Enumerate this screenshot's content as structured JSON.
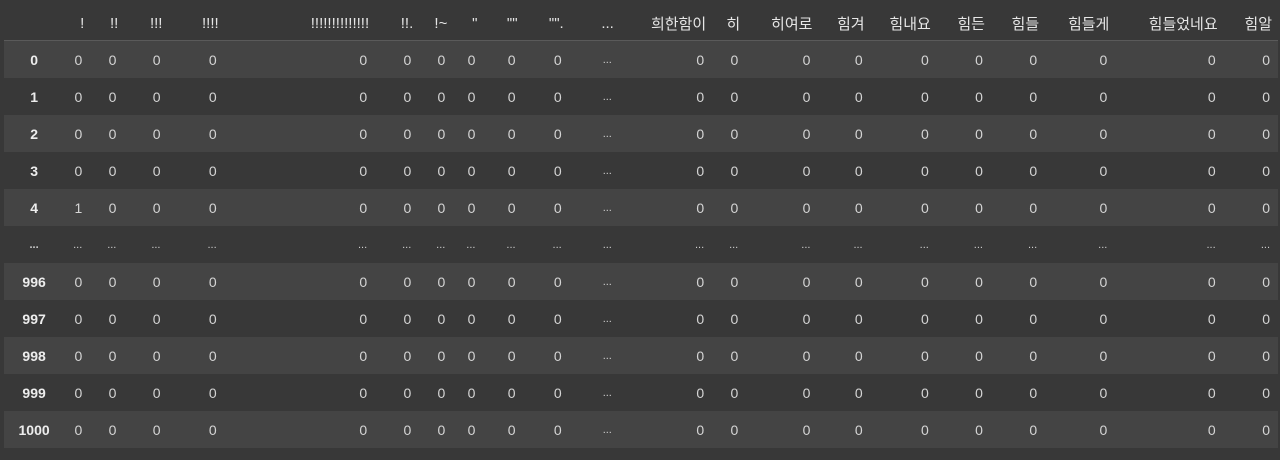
{
  "table": {
    "columns": [
      "!",
      "!!",
      "!!!",
      "!!!!",
      "!!!!!!!!!!!!!!",
      "!!.",
      "!~",
      "\"",
      "\"\"",
      "\"\".",
      "...",
      "희한함이",
      "히",
      "히여로",
      "힘겨",
      "힘내요",
      "힘든",
      "힘들",
      "힘들게",
      "힘들었네요",
      "힘알"
    ],
    "rows": [
      {
        "index": "0",
        "cells": [
          "0",
          "0",
          "0",
          "0",
          "0",
          "0",
          "0",
          "0",
          "0",
          "0",
          "...",
          "0",
          "0",
          "0",
          "0",
          "0",
          "0",
          "0",
          "0",
          "0",
          "0"
        ]
      },
      {
        "index": "1",
        "cells": [
          "0",
          "0",
          "0",
          "0",
          "0",
          "0",
          "0",
          "0",
          "0",
          "0",
          "...",
          "0",
          "0",
          "0",
          "0",
          "0",
          "0",
          "0",
          "0",
          "0",
          "0"
        ]
      },
      {
        "index": "2",
        "cells": [
          "0",
          "0",
          "0",
          "0",
          "0",
          "0",
          "0",
          "0",
          "0",
          "0",
          "...",
          "0",
          "0",
          "0",
          "0",
          "0",
          "0",
          "0",
          "0",
          "0",
          "0"
        ]
      },
      {
        "index": "3",
        "cells": [
          "0",
          "0",
          "0",
          "0",
          "0",
          "0",
          "0",
          "0",
          "0",
          "0",
          "...",
          "0",
          "0",
          "0",
          "0",
          "0",
          "0",
          "0",
          "0",
          "0",
          "0"
        ]
      },
      {
        "index": "4",
        "cells": [
          "1",
          "0",
          "0",
          "0",
          "0",
          "0",
          "0",
          "0",
          "0",
          "0",
          "...",
          "0",
          "0",
          "0",
          "0",
          "0",
          "0",
          "0",
          "0",
          "0",
          "0"
        ]
      },
      {
        "index": "...",
        "cells": [
          "...",
          "...",
          "...",
          "...",
          "...",
          "...",
          "...",
          "...",
          "...",
          "...",
          "...",
          "...",
          "...",
          "...",
          "...",
          "...",
          "...",
          "...",
          "...",
          "...",
          "..."
        ]
      },
      {
        "index": "996",
        "cells": [
          "0",
          "0",
          "0",
          "0",
          "0",
          "0",
          "0",
          "0",
          "0",
          "0",
          "...",
          "0",
          "0",
          "0",
          "0",
          "0",
          "0",
          "0",
          "0",
          "0",
          "0"
        ]
      },
      {
        "index": "997",
        "cells": [
          "0",
          "0",
          "0",
          "0",
          "0",
          "0",
          "0",
          "0",
          "0",
          "0",
          "...",
          "0",
          "0",
          "0",
          "0",
          "0",
          "0",
          "0",
          "0",
          "0",
          "0"
        ]
      },
      {
        "index": "998",
        "cells": [
          "0",
          "0",
          "0",
          "0",
          "0",
          "0",
          "0",
          "0",
          "0",
          "0",
          "...",
          "0",
          "0",
          "0",
          "0",
          "0",
          "0",
          "0",
          "0",
          "0",
          "0"
        ]
      },
      {
        "index": "999",
        "cells": [
          "0",
          "0",
          "0",
          "0",
          "0",
          "0",
          "0",
          "0",
          "0",
          "0",
          "...",
          "0",
          "0",
          "0",
          "0",
          "0",
          "0",
          "0",
          "0",
          "0",
          "0"
        ]
      },
      {
        "index": "1000",
        "cells": [
          "0",
          "0",
          "0",
          "0",
          "0",
          "0",
          "0",
          "0",
          "0",
          "0",
          "...",
          "0",
          "0",
          "0",
          "0",
          "0",
          "0",
          "0",
          "0",
          "0",
          "0"
        ]
      }
    ]
  }
}
